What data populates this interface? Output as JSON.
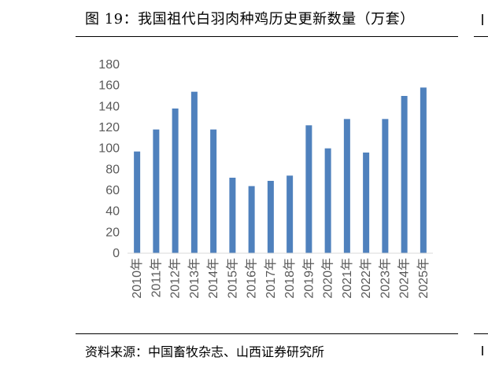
{
  "figure": {
    "title": "图 19：我国祖代白羽肉种鸡历史更新数量（万套）",
    "source": "资料来源：中国畜牧杂志、山西证券研究所"
  },
  "chart_data": {
    "type": "bar",
    "categories": [
      "2010年",
      "2011年",
      "2012年",
      "2013年",
      "2014年",
      "2015年",
      "2016年",
      "2017年",
      "2018年",
      "2019年",
      "2020年",
      "2021年",
      "2022年",
      "2023年",
      "2024年",
      "2025年"
    ],
    "values": [
      97,
      118,
      138,
      154,
      118,
      72,
      64,
      69,
      74,
      122,
      100,
      128,
      96,
      128,
      150,
      158
    ],
    "ylim": [
      0,
      180
    ],
    "yticks": [
      0,
      20,
      40,
      60,
      80,
      100,
      120,
      140,
      160,
      180
    ],
    "grid": false,
    "legend": "none",
    "bar_color": "#4f81bd",
    "axis_color": "#d9d9d9"
  }
}
